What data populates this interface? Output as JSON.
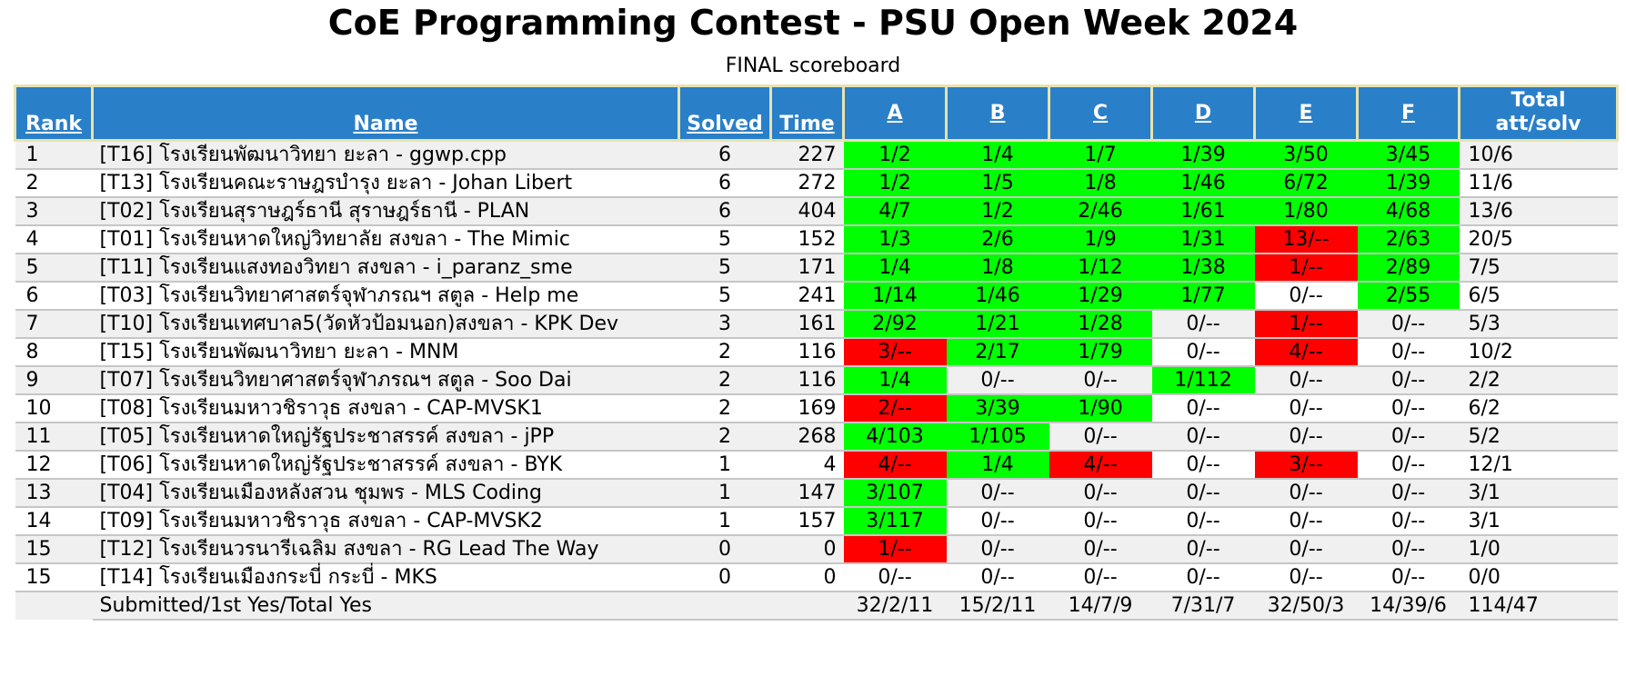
{
  "page": {
    "title": "CoE Programming Contest - PSU Open Week 2024",
    "subtitle": "FINAL scoreboard"
  },
  "colors": {
    "header_bg": "#2a7fc9",
    "header_border": "#e7e3ae",
    "solved_bg": "#00ff00",
    "tried_bg": "#ff0000",
    "stripe_bg": "#f0f0f0",
    "row_even_bg": "#ffffff",
    "separator": "#c6c6c6"
  },
  "table": {
    "header": {
      "rank": "Rank",
      "name": "Name",
      "solved": "Solved",
      "time": "Time",
      "problems": [
        "A",
        "B",
        "C",
        "D",
        "E",
        "F"
      ],
      "total_line1": "Total",
      "total_line2": "att/solv"
    },
    "rows": [
      {
        "rank": "1",
        "name": "[T16] โรงเรียนพัฒนาวิทยา ยะลา - ggwp.cpp",
        "solved": "6",
        "time": "227",
        "problems": [
          {
            "text": "1/2",
            "status": "solved"
          },
          {
            "text": "1/4",
            "status": "solved"
          },
          {
            "text": "1/7",
            "status": "solved"
          },
          {
            "text": "1/39",
            "status": "solved"
          },
          {
            "text": "3/50",
            "status": "solved"
          },
          {
            "text": "3/45",
            "status": "solved"
          }
        ],
        "total": "10/6"
      },
      {
        "rank": "2",
        "name": "[T13] โรงเรียนคณะราษฎรบำรุง ยะลา - Johan Libert",
        "solved": "6",
        "time": "272",
        "problems": [
          {
            "text": "1/2",
            "status": "solved"
          },
          {
            "text": "1/5",
            "status": "solved"
          },
          {
            "text": "1/8",
            "status": "solved"
          },
          {
            "text": "1/46",
            "status": "solved"
          },
          {
            "text": "6/72",
            "status": "solved"
          },
          {
            "text": "1/39",
            "status": "solved"
          }
        ],
        "total": "11/6"
      },
      {
        "rank": "3",
        "name": "[T02] โรงเรียนสุราษฎร์ธานี สุราษฎร์ธานี - PLAN",
        "solved": "6",
        "time": "404",
        "problems": [
          {
            "text": "4/7",
            "status": "solved"
          },
          {
            "text": "1/2",
            "status": "solved"
          },
          {
            "text": "2/46",
            "status": "solved"
          },
          {
            "text": "1/61",
            "status": "solved"
          },
          {
            "text": "1/80",
            "status": "solved"
          },
          {
            "text": "4/68",
            "status": "solved"
          }
        ],
        "total": "13/6"
      },
      {
        "rank": "4",
        "name": "[T01] โรงเรียนหาดใหญ่วิทยาลัย สงขลา - The Mimic",
        "solved": "5",
        "time": "152",
        "problems": [
          {
            "text": "1/3",
            "status": "solved"
          },
          {
            "text": "2/6",
            "status": "solved"
          },
          {
            "text": "1/9",
            "status": "solved"
          },
          {
            "text": "1/31",
            "status": "solved"
          },
          {
            "text": "13/--",
            "status": "tried"
          },
          {
            "text": "2/63",
            "status": "solved"
          }
        ],
        "total": "20/5"
      },
      {
        "rank": "5",
        "name": "[T11] โรงเรียนแสงทองวิทยา สงขลา - i_paranz_sme",
        "solved": "5",
        "time": "171",
        "problems": [
          {
            "text": "1/4",
            "status": "solved"
          },
          {
            "text": "1/8",
            "status": "solved"
          },
          {
            "text": "1/12",
            "status": "solved"
          },
          {
            "text": "1/38",
            "status": "solved"
          },
          {
            "text": "1/--",
            "status": "tried"
          },
          {
            "text": "2/89",
            "status": "solved"
          }
        ],
        "total": "7/5"
      },
      {
        "rank": "6",
        "name": "[T03] โรงเรียนวิทยาศาสตร์จุฬาภรณฯ สตูล - Help me",
        "solved": "5",
        "time": "241",
        "problems": [
          {
            "text": "1/14",
            "status": "solved"
          },
          {
            "text": "1/46",
            "status": "solved"
          },
          {
            "text": "1/29",
            "status": "solved"
          },
          {
            "text": "1/77",
            "status": "solved"
          },
          {
            "text": "0/--",
            "status": "none"
          },
          {
            "text": "2/55",
            "status": "solved"
          }
        ],
        "total": "6/5"
      },
      {
        "rank": "7",
        "name": "[T10] โรงเรียนเทศบาล5(วัดหัวป้อมนอก)สงขลา - KPK Dev",
        "solved": "3",
        "time": "161",
        "problems": [
          {
            "text": "2/92",
            "status": "solved"
          },
          {
            "text": "1/21",
            "status": "solved"
          },
          {
            "text": "1/28",
            "status": "solved"
          },
          {
            "text": "0/--",
            "status": "none"
          },
          {
            "text": "1/--",
            "status": "tried"
          },
          {
            "text": "0/--",
            "status": "none"
          }
        ],
        "total": "5/3"
      },
      {
        "rank": "8",
        "name": "[T15] โรงเรียนพัฒนาวิทยา ยะลา - MNM",
        "solved": "2",
        "time": "116",
        "problems": [
          {
            "text": "3/--",
            "status": "tried"
          },
          {
            "text": "2/17",
            "status": "solved"
          },
          {
            "text": "1/79",
            "status": "solved"
          },
          {
            "text": "0/--",
            "status": "none"
          },
          {
            "text": "4/--",
            "status": "tried"
          },
          {
            "text": "0/--",
            "status": "none"
          }
        ],
        "total": "10/2"
      },
      {
        "rank": "9",
        "name": "[T07] โรงเรียนวิทยาศาสตร์จุฬาภรณฯ สตูล - Soo Dai",
        "solved": "2",
        "time": "116",
        "problems": [
          {
            "text": "1/4",
            "status": "solved"
          },
          {
            "text": "0/--",
            "status": "none"
          },
          {
            "text": "0/--",
            "status": "none"
          },
          {
            "text": "1/112",
            "status": "solved"
          },
          {
            "text": "0/--",
            "status": "none"
          },
          {
            "text": "0/--",
            "status": "none"
          }
        ],
        "total": "2/2"
      },
      {
        "rank": "10",
        "name": "[T08] โรงเรียนมหาวชิราวุธ สงขลา - CAP-MVSK1",
        "solved": "2",
        "time": "169",
        "problems": [
          {
            "text": "2/--",
            "status": "tried"
          },
          {
            "text": "3/39",
            "status": "solved"
          },
          {
            "text": "1/90",
            "status": "solved"
          },
          {
            "text": "0/--",
            "status": "none"
          },
          {
            "text": "0/--",
            "status": "none"
          },
          {
            "text": "0/--",
            "status": "none"
          }
        ],
        "total": "6/2"
      },
      {
        "rank": "11",
        "name": "[T05] โรงเรียนหาดใหญ่รัฐประชาสรรค์ สงขลา - jPP",
        "solved": "2",
        "time": "268",
        "problems": [
          {
            "text": "4/103",
            "status": "solved"
          },
          {
            "text": "1/105",
            "status": "solved"
          },
          {
            "text": "0/--",
            "status": "none"
          },
          {
            "text": "0/--",
            "status": "none"
          },
          {
            "text": "0/--",
            "status": "none"
          },
          {
            "text": "0/--",
            "status": "none"
          }
        ],
        "total": "5/2"
      },
      {
        "rank": "12",
        "name": "[T06] โรงเรียนหาดใหญ่รัฐประชาสรรค์ สงขลา - BYK",
        "solved": "1",
        "time": "4",
        "problems": [
          {
            "text": "4/--",
            "status": "tried"
          },
          {
            "text": "1/4",
            "status": "solved"
          },
          {
            "text": "4/--",
            "status": "tried"
          },
          {
            "text": "0/--",
            "status": "none"
          },
          {
            "text": "3/--",
            "status": "tried"
          },
          {
            "text": "0/--",
            "status": "none"
          }
        ],
        "total": "12/1"
      },
      {
        "rank": "13",
        "name": "[T04] โรงเรียนเมืองหลังสวน ชุมพร - MLS Coding",
        "solved": "1",
        "time": "147",
        "problems": [
          {
            "text": "3/107",
            "status": "solved"
          },
          {
            "text": "0/--",
            "status": "none"
          },
          {
            "text": "0/--",
            "status": "none"
          },
          {
            "text": "0/--",
            "status": "none"
          },
          {
            "text": "0/--",
            "status": "none"
          },
          {
            "text": "0/--",
            "status": "none"
          }
        ],
        "total": "3/1"
      },
      {
        "rank": "14",
        "name": "[T09] โรงเรียนมหาวชิราวุธ สงขลา - CAP-MVSK2",
        "solved": "1",
        "time": "157",
        "problems": [
          {
            "text": "3/117",
            "status": "solved"
          },
          {
            "text": "0/--",
            "status": "none"
          },
          {
            "text": "0/--",
            "status": "none"
          },
          {
            "text": "0/--",
            "status": "none"
          },
          {
            "text": "0/--",
            "status": "none"
          },
          {
            "text": "0/--",
            "status": "none"
          }
        ],
        "total": "3/1"
      },
      {
        "rank": "15",
        "name": "[T12] โรงเรียนวรนารีเฉลิม สงขลา - RG Lead The Way",
        "solved": "0",
        "time": "0",
        "problems": [
          {
            "text": "1/--",
            "status": "tried"
          },
          {
            "text": "0/--",
            "status": "none"
          },
          {
            "text": "0/--",
            "status": "none"
          },
          {
            "text": "0/--",
            "status": "none"
          },
          {
            "text": "0/--",
            "status": "none"
          },
          {
            "text": "0/--",
            "status": "none"
          }
        ],
        "total": "1/0"
      },
      {
        "rank": "15",
        "name": "[T14] โรงเรียนเมืองกระบี่ กระบี่ - MKS",
        "solved": "0",
        "time": "0",
        "problems": [
          {
            "text": "0/--",
            "status": "none"
          },
          {
            "text": "0/--",
            "status": "none"
          },
          {
            "text": "0/--",
            "status": "none"
          },
          {
            "text": "0/--",
            "status": "none"
          },
          {
            "text": "0/--",
            "status": "none"
          },
          {
            "text": "0/--",
            "status": "none"
          }
        ],
        "total": "0/0"
      }
    ],
    "summary": {
      "label": "Submitted/1st Yes/Total Yes",
      "cells": [
        "32/2/11",
        "15/2/11",
        "14/7/9",
        "7/31/7",
        "32/50/3",
        "14/39/6"
      ],
      "total": "114/47"
    }
  }
}
